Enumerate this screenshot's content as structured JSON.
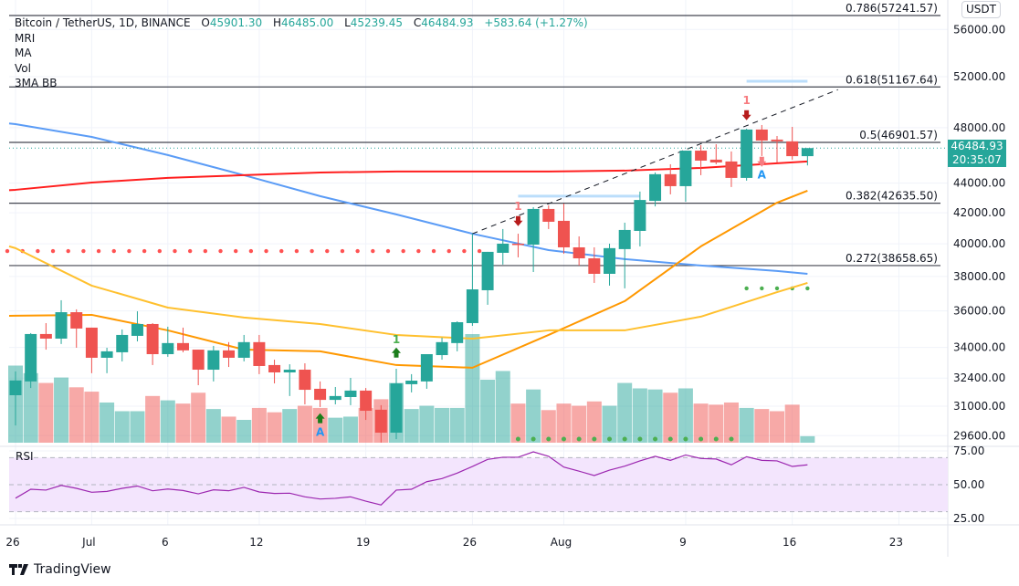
{
  "legend": {
    "symbol": "Bitcoin / TetherUS, 1D, BINANCE",
    "o_label": "O",
    "o": "45901.30",
    "h_label": "H",
    "h": "46485.00",
    "l_label": "L",
    "l": "45239.45",
    "c_label": "C",
    "c": "46484.93",
    "change": "+583.64 (+1.27%)",
    "indicators": [
      "MRI",
      "MA",
      "Vol",
      "3MA BB"
    ]
  },
  "currency_badge": "USDT",
  "last_price": {
    "price": "46484.93",
    "countdown": "20:35:07"
  },
  "brand": "TradingView",
  "colors": {
    "up": "#26a69a",
    "down": "#ef5350",
    "ma_blue": "#5b9cf6",
    "ma_red": "#ff1e1e",
    "ma_orange": "#ff9800",
    "ma_yellow": "#ffc02e",
    "rsi": "#9c27b0",
    "rsi_band": "#f3e5fd"
  },
  "chart_data": [
    {
      "type": "candlestick",
      "scale": "log",
      "ylim": [
        28700,
        58000
      ],
      "y_ticks": [
        "56000.00",
        "52000.00",
        "48000.00",
        "44000.00",
        "42000.00",
        "40000.00",
        "38000.00",
        "36000.00",
        "34000.00",
        "32400.00",
        "31000.00",
        "29600.00"
      ],
      "y_tick_values": [
        56000,
        52000,
        48000,
        44000,
        42000,
        40000,
        38000,
        36000,
        34000,
        32400,
        31000,
        29600
      ],
      "x_ticks": [
        {
          "label": "26",
          "date": "06-26"
        },
        {
          "label": "Jul",
          "date": "07-01"
        },
        {
          "label": "6",
          "date": "07-06"
        },
        {
          "label": "12",
          "date": "07-12"
        },
        {
          "label": "19",
          "date": "07-19"
        },
        {
          "label": "26",
          "date": "07-26"
        },
        {
          "label": "Aug",
          "date": "08-01"
        },
        {
          "label": "9",
          "date": "08-09"
        },
        {
          "label": "16",
          "date": "08-16"
        },
        {
          "label": "23",
          "date": "08-23"
        }
      ],
      "grid": true,
      "columns": [
        "date",
        "open",
        "high",
        "low",
        "close"
      ],
      "candles": [
        [
          "06-26",
          31540,
          32740,
          30080,
          32280
        ],
        [
          "06-27",
          32230,
          34770,
          31900,
          34720
        ],
        [
          "06-28",
          34720,
          35320,
          33880,
          34470
        ],
        [
          "06-29",
          34470,
          36610,
          34180,
          35930
        ],
        [
          "06-30",
          35930,
          36090,
          33980,
          35020
        ],
        [
          "07-01",
          35070,
          35070,
          32650,
          33450
        ],
        [
          "07-02",
          33450,
          33980,
          32650,
          33790
        ],
        [
          "07-03",
          33740,
          34970,
          33260,
          34670
        ],
        [
          "07-04",
          34620,
          35980,
          34320,
          35270
        ],
        [
          "07-05",
          35270,
          35320,
          33070,
          33640
        ],
        [
          "07-06",
          33640,
          35120,
          33500,
          34230
        ],
        [
          "07-07",
          34230,
          35070,
          33740,
          33840
        ],
        [
          "07-08",
          33880,
          33880,
          32040,
          32830
        ],
        [
          "07-09",
          32830,
          34080,
          32230,
          33840
        ],
        [
          "07-10",
          33840,
          34280,
          32970,
          33450
        ],
        [
          "07-11",
          33450,
          34670,
          33260,
          34280
        ],
        [
          "07-12",
          34280,
          34670,
          32600,
          33020
        ],
        [
          "07-13",
          33070,
          33350,
          32130,
          32690
        ],
        [
          "07-14",
          32690,
          33110,
          31500,
          32830
        ],
        [
          "07-15",
          32830,
          33160,
          31090,
          31810
        ],
        [
          "07-16",
          31860,
          32230,
          30960,
          31310
        ],
        [
          "07-17",
          31310,
          31950,
          31090,
          31500
        ],
        [
          "07-18",
          31450,
          32410,
          31050,
          31770
        ],
        [
          "07-19",
          31770,
          31900,
          30340,
          30780
        ],
        [
          "07-20",
          30830,
          31050,
          29280,
          29740
        ],
        [
          "07-21",
          29740,
          32880,
          29440,
          32130
        ],
        [
          "07-22",
          32090,
          32600,
          31680,
          32270
        ],
        [
          "07-23",
          32230,
          33640,
          31860,
          33640
        ],
        [
          "07-24",
          33590,
          34520,
          33350,
          34280
        ],
        [
          "07-25",
          34230,
          35420,
          33790,
          35370
        ],
        [
          "07-26",
          35320,
          40640,
          35170,
          37240
        ],
        [
          "07-27",
          37190,
          39500,
          36350,
          39500
        ],
        [
          "07-28",
          39440,
          40940,
          38720,
          40010
        ],
        [
          "07-29",
          40010,
          40640,
          39160,
          39950
        ],
        [
          "07-30",
          39950,
          42370,
          38270,
          42250
        ],
        [
          "07-31",
          42250,
          42490,
          40940,
          41410
        ],
        [
          "08-01",
          41470,
          42610,
          39380,
          39780
        ],
        [
          "08-02",
          39780,
          40470,
          38660,
          39100
        ],
        [
          "08-03",
          39100,
          39780,
          37620,
          38160
        ],
        [
          "08-04",
          38160,
          40010,
          37460,
          39730
        ],
        [
          "08-05",
          39670,
          41350,
          37300,
          40880
        ],
        [
          "08-06",
          40820,
          43420,
          39840,
          42850
        ],
        [
          "08-07",
          42790,
          44740,
          42420,
          44620
        ],
        [
          "08-08",
          44620,
          45320,
          43230,
          43790
        ],
        [
          "08-09",
          43790,
          46300,
          42730,
          46300
        ],
        [
          "08-10",
          46300,
          46700,
          44550,
          45580
        ],
        [
          "08-11",
          45650,
          46770,
          45320,
          45450
        ],
        [
          "08-12",
          45520,
          46240,
          43730,
          44360
        ],
        [
          "08-13",
          44360,
          47920,
          44170,
          47860
        ],
        [
          "08-14",
          47860,
          48200,
          45910,
          47040
        ],
        [
          "08-15",
          47110,
          47380,
          45450,
          46980
        ],
        [
          "08-16",
          46980,
          48060,
          45650,
          45901.3
        ],
        [
          "08-17",
          45901.3,
          46485.0,
          45239.45,
          46484.93
        ]
      ],
      "volume_relative": [
        71,
        64,
        55,
        60,
        51,
        47,
        37,
        29,
        29,
        43,
        39,
        36,
        46,
        31,
        24,
        21,
        32,
        28,
        31,
        34,
        32,
        23,
        24,
        32,
        40,
        55,
        31,
        34,
        32,
        32,
        100,
        58,
        66,
        36,
        49,
        30,
        36,
        34,
        38,
        34,
        55,
        50,
        49,
        46,
        50,
        36,
        35,
        37,
        32,
        31,
        29,
        35,
        6
      ],
      "moving_averages": {
        "dates": [
          "06-26",
          "07-01",
          "07-06",
          "07-11",
          "07-16",
          "07-21",
          "07-26",
          "07-31",
          "08-05",
          "08-10",
          "08-15",
          "08-17"
        ],
        "blue": [
          48270,
          47310,
          45980,
          44550,
          43110,
          41890,
          40640,
          39610,
          39050,
          38660,
          38330,
          38160
        ],
        "red": [
          43540,
          44040,
          44360,
          44550,
          44740,
          44810,
          44810,
          44810,
          44870,
          45060,
          45390,
          45520
        ],
        "orange": [
          35730,
          35780,
          34920,
          33880,
          33790,
          33070,
          32930,
          34670,
          36560,
          39840,
          42670,
          43480
        ],
        "yellow": [
          39730,
          37460,
          36190,
          35630,
          35270,
          34670,
          34470,
          34920,
          34920,
          35680,
          37080,
          37620
        ]
      },
      "fib_levels": [
        {
          "label": "0.786(57241.57)",
          "price": 57241.57
        },
        {
          "label": "0.618(51167.64)",
          "price": 51167.64
        },
        {
          "label": "0.5(46901.57)",
          "price": 46901.57
        },
        {
          "label": "0.382(42635.50)",
          "price": 42635.5
        },
        {
          "label": "0.272(38658.65)",
          "price": 38658.65
        }
      ],
      "trend_line": {
        "start": {
          "date": "07-26",
          "price": 40640
        },
        "end": {
          "date": "08-19",
          "price": 50950
        }
      },
      "resistance_dots": {
        "price": 39550,
        "from": "06-26",
        "to": "07-27"
      },
      "support_dots": {
        "price": 37300,
        "from": "08-13",
        "to": "08-17"
      },
      "volume_dots": {
        "from": "07-29",
        "to": "08-12"
      },
      "range_segments": [
        {
          "price": 43110,
          "from": "07-29",
          "to": "08-06"
        },
        {
          "price": 51630,
          "from": "08-13",
          "to": "08-17"
        }
      ],
      "signals": [
        {
          "date": "07-16",
          "kind": "buy-arrow",
          "price": 30400,
          "label": "A",
          "label_color": "#2196f3"
        },
        {
          "date": "07-21",
          "kind": "buy-arrow",
          "price": 33700,
          "label": "1",
          "label_color": "#4caf50"
        },
        {
          "date": "07-29",
          "kind": "sell-arrow",
          "price": 41480,
          "label": "1",
          "label_color": "#f77c80"
        },
        {
          "date": "08-13",
          "kind": "sell-arrow",
          "price": 48980,
          "label": "1",
          "label_color": "#f77c80"
        },
        {
          "date": "08-14",
          "kind": "sell-arrow-light",
          "price": 45530,
          "label": "A",
          "label_color": "#2196f3"
        }
      ]
    },
    {
      "type": "line",
      "title": "RSI",
      "ylim": [
        15,
        85
      ],
      "y_ticks": [
        "75.00",
        "50.00",
        "25.00"
      ],
      "y_tick_values": [
        75,
        50,
        25
      ],
      "band": [
        30,
        70
      ],
      "values": [
        40,
        46.6,
        46,
        49.5,
        47.3,
        44.4,
        45,
        47.3,
        49,
        45.5,
        46.8,
        45.7,
        43.2,
        46.2,
        45.5,
        48,
        44.6,
        43.5,
        43.7,
        41,
        39.4,
        39.9,
        41,
        37.8,
        35,
        46,
        46.6,
        52.2,
        54.5,
        58.6,
        63.5,
        68.7,
        70.3,
        70.3,
        74.3,
        71,
        63,
        60,
        56.8,
        60.8,
        63.7,
        67.6,
        71,
        68,
        72,
        69.4,
        69,
        64.7,
        70.7,
        68,
        67.6,
        63.5,
        64.7
      ]
    }
  ]
}
